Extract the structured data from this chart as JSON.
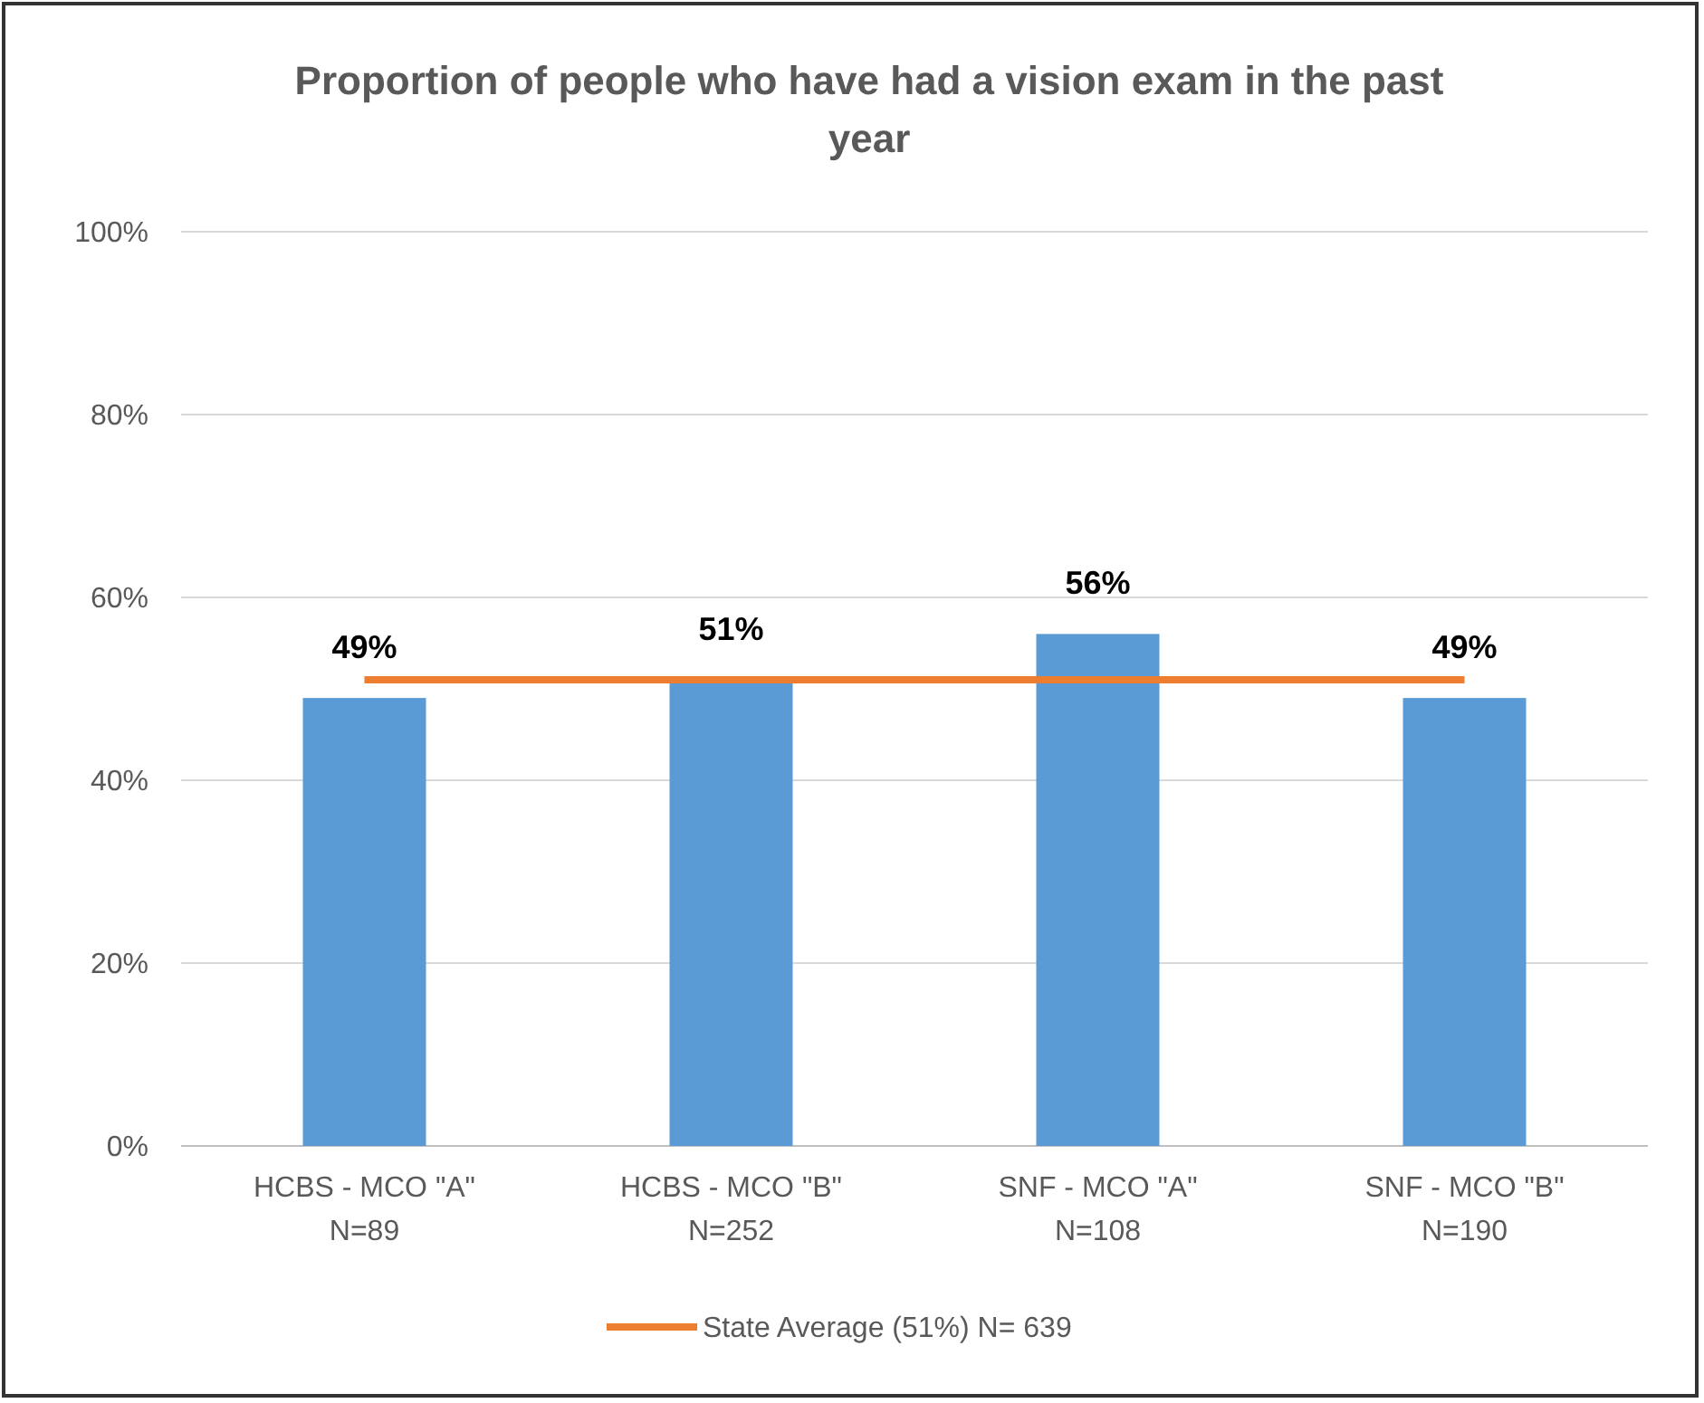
{
  "chart_data": {
    "type": "bar",
    "title": "Proportion of people who have had a vision exam in the past year",
    "categories": [
      "HCBS - MCO \"A\"\nN=89",
      "HCBS - MCO \"B\"\nN=252",
      "SNF - MCO \"A\"\nN=108",
      "SNF - MCO \"B\"\nN=190"
    ],
    "series": [
      {
        "color": "#5b9bd5",
        "values": [
          49,
          51,
          56,
          49
        ],
        "value_labels": [
          "49%",
          "51%",
          "56%",
          "49%"
        ]
      },
      {
        "type": "line",
        "name": "State Average (51%) N= 639",
        "color": "#ed7d31",
        "values": [
          51,
          51,
          51,
          51
        ]
      }
    ],
    "ylim": [
      0,
      100
    ],
    "yticks": [
      {
        "value": 0,
        "label": "0%"
      },
      {
        "value": 20,
        "label": "20%"
      },
      {
        "value": 40,
        "label": "40%"
      },
      {
        "value": 60,
        "label": "60%"
      },
      {
        "value": 80,
        "label": "80%"
      },
      {
        "value": 100,
        "label": "100%"
      }
    ],
    "grid": "y",
    "legend": "bottom",
    "marker": "none",
    "line_style": "solid"
  }
}
